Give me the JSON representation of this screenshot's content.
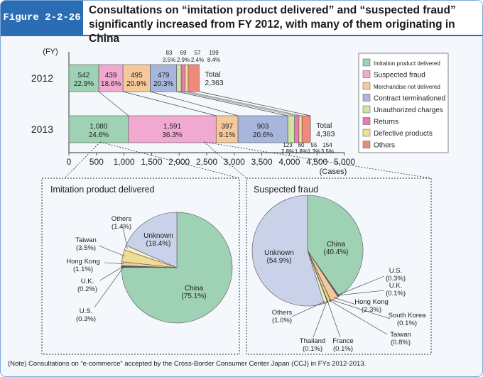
{
  "figure_label": "Figure 2-2-26",
  "title": "Consultations on “imitation product delivered” and “suspected fraud” significantly increased from FY 2012, with many of them originating in China",
  "note": "(Note) Consultations on “e-commerce” accepted by the Cross-Border Consumer Center Japan (CCJ) in FYs 2012-2013.",
  "colors": {
    "Imitation product delivered": "#9fd1b4",
    "Suspected fraud": "#f1a9d1",
    "Merchandise not delivered": "#f7c99a",
    "Contract terminationed": "#a9b6dc",
    "Unauthorized charges": "#cfe3a5",
    "Returns": "#e97ab3",
    "Defective products": "#f0e08a",
    "Others": "#ef8a7a"
  },
  "chart_data": [
    {
      "type": "bar",
      "orientation": "horizontal-stacked",
      "yaxis_label": "(FY)",
      "xlabel": "(Cases)",
      "xlim": [
        0,
        5000
      ],
      "xticks": [
        "0",
        "500",
        "1,000",
        "1,500",
        "2,000",
        "2,500",
        "3,000",
        "3,500",
        "4,000",
        "4,500",
        "5,000"
      ],
      "categories": [
        "2012",
        "2013"
      ],
      "series": [
        {
          "name": "Imitation product delivered",
          "values": [
            542,
            1080
          ],
          "pct": [
            "22.9%",
            "24.6%"
          ],
          "labels": [
            "542",
            "1,080"
          ]
        },
        {
          "name": "Suspected fraud",
          "values": [
            439,
            1591
          ],
          "pct": [
            "18.6%",
            "36.3%"
          ],
          "labels": [
            "439",
            "1,591"
          ]
        },
        {
          "name": "Merchandise not delivered",
          "values": [
            495,
            397
          ],
          "pct": [
            "20.9%",
            "9.1%"
          ],
          "labels": [
            "495",
            "397"
          ]
        },
        {
          "name": "Contract terminationed",
          "values": [
            479,
            903
          ],
          "pct": [
            "20.3%",
            "20.6%"
          ],
          "labels": [
            "479",
            "903"
          ]
        },
        {
          "name": "Unauthorized charges",
          "values": [
            83,
            123
          ],
          "pct": [
            "3.5%",
            "2.8%"
          ],
          "labels": [
            "83",
            "123"
          ]
        },
        {
          "name": "Returns",
          "values": [
            69,
            80
          ],
          "pct": [
            "2.9%",
            "1.8%"
          ],
          "labels": [
            "69",
            "80"
          ]
        },
        {
          "name": "Defective products",
          "values": [
            57,
            55
          ],
          "pct": [
            "2.4%",
            "1.3%"
          ],
          "labels": [
            "57",
            "55"
          ]
        },
        {
          "name": "Others",
          "values": [
            199,
            154
          ],
          "pct": [
            "8.4%",
            "3.5%"
          ],
          "labels": [
            "199",
            "154"
          ]
        }
      ],
      "totals": [
        {
          "label": "Total",
          "value": "2,363"
        },
        {
          "label": "Total",
          "value": "4,383"
        }
      ],
      "legend": [
        "Imitation product delivered",
        "Suspected fraud",
        "Merchandise not delivered",
        "Contract terminationed",
        "Unauthorized charges",
        "Returns",
        "Defective products",
        "Others"
      ]
    },
    {
      "type": "pie",
      "title": "Imitation product delivered",
      "slices": [
        {
          "name": "China",
          "value": 75.1,
          "pct": "(75.1%)"
        },
        {
          "name": "U.S.",
          "value": 0.3,
          "pct": "(0.3%)"
        },
        {
          "name": "U.K.",
          "value": 0.2,
          "pct": "(0.2%)"
        },
        {
          "name": "Hong Kong",
          "value": 1.1,
          "pct": "(1.1%)"
        },
        {
          "name": "Taiwan",
          "value": 3.5,
          "pct": "(3.5%)"
        },
        {
          "name": "Others",
          "value": 1.4,
          "pct": "(1.4%)"
        },
        {
          "name": "Unknown",
          "value": 18.4,
          "pct": "(18.4%)"
        }
      ]
    },
    {
      "type": "pie",
      "title": "Suspected fraud",
      "slices": [
        {
          "name": "China",
          "value": 40.4,
          "pct": "(40.4%)"
        },
        {
          "name": "U.S.",
          "value": 0.3,
          "pct": "(0.3%)"
        },
        {
          "name": "U.K.",
          "value": 0.1,
          "pct": "(0.1%)"
        },
        {
          "name": "Hong Kong",
          "value": 2.3,
          "pct": "(2.3%)"
        },
        {
          "name": "South Korea",
          "value": 0.1,
          "pct": "(0.1%)"
        },
        {
          "name": "Taiwan",
          "value": 0.8,
          "pct": "(0.8%)"
        },
        {
          "name": "France",
          "value": 0.1,
          "pct": "(0.1%)"
        },
        {
          "name": "Thailand",
          "value": 0.1,
          "pct": "(0.1%)"
        },
        {
          "name": "Others",
          "value": 1.0,
          "pct": "(1.0%)"
        },
        {
          "name": "Unknown",
          "value": 54.9,
          "pct": "(54.9%)"
        }
      ]
    }
  ]
}
